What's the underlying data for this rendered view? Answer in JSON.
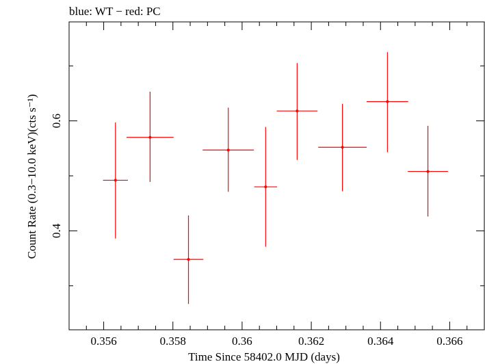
{
  "chart_data": {
    "type": "scatter",
    "title": "blue: WT − red: PC",
    "xlabel": "Time Since 58402.0 MJD (days)",
    "ylabel": "Count Rate (0.3−10.0 keV)(cts s⁻¹)",
    "xlim": [
      0.355,
      0.367
    ],
    "ylim": [
      0.22,
      0.78
    ],
    "x_ticks": [
      0.356,
      0.358,
      0.36,
      0.362,
      0.364,
      0.366
    ],
    "x_tick_labels": [
      "0.356",
      "0.358",
      "0.36",
      "0.362",
      "0.364",
      "0.366"
    ],
    "y_ticks": [
      0.4,
      0.6
    ],
    "y_tick_labels": [
      "0.4",
      "0.6"
    ],
    "grid": false,
    "series": [
      {
        "name": "PC",
        "color": "#ff0000",
        "points": [
          {
            "x": 0.35634,
            "xerr": 0.00036,
            "y": 0.492,
            "y_low": 0.386,
            "y_high": 0.597
          },
          {
            "x": 0.35734,
            "xerr": 0.00068,
            "y": 0.57,
            "y_low": 0.489,
            "y_high": 0.653
          },
          {
            "x": 0.35845,
            "xerr": 0.00043,
            "y": 0.348,
            "y_low": 0.267,
            "y_high": 0.428
          },
          {
            "x": 0.3596,
            "xerr": 0.00074,
            "y": 0.547,
            "y_low": 0.471,
            "y_high": 0.624
          },
          {
            "x": 0.36068,
            "xerr": 0.00033,
            "y": 0.48,
            "y_low": 0.371,
            "y_high": 0.589
          },
          {
            "x": 0.36159,
            "xerr": 0.00059,
            "y": 0.618,
            "y_low": 0.529,
            "y_high": 0.705
          },
          {
            "x": 0.3629,
            "xerr": 0.0007,
            "y": 0.552,
            "y_low": 0.472,
            "y_high": 0.631
          },
          {
            "x": 0.3642,
            "xerr": 0.0006,
            "y": 0.635,
            "y_low": 0.543,
            "y_high": 0.725
          },
          {
            "x": 0.36537,
            "xerr": 0.00058,
            "y": 0.508,
            "y_low": 0.426,
            "y_high": 0.591
          }
        ]
      }
    ]
  }
}
